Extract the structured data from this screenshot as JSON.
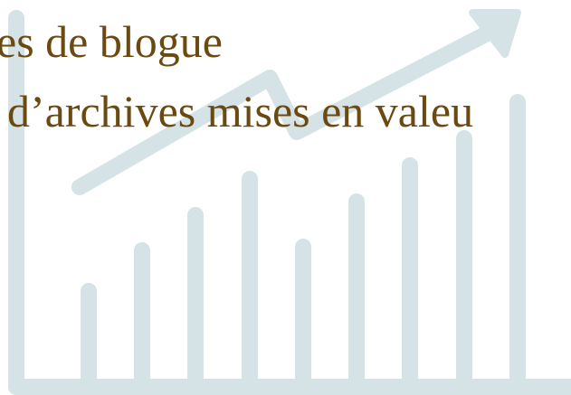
{
  "heading": {
    "line1": "es de blogue",
    "line2": "d’archives mises en valeu"
  }
}
